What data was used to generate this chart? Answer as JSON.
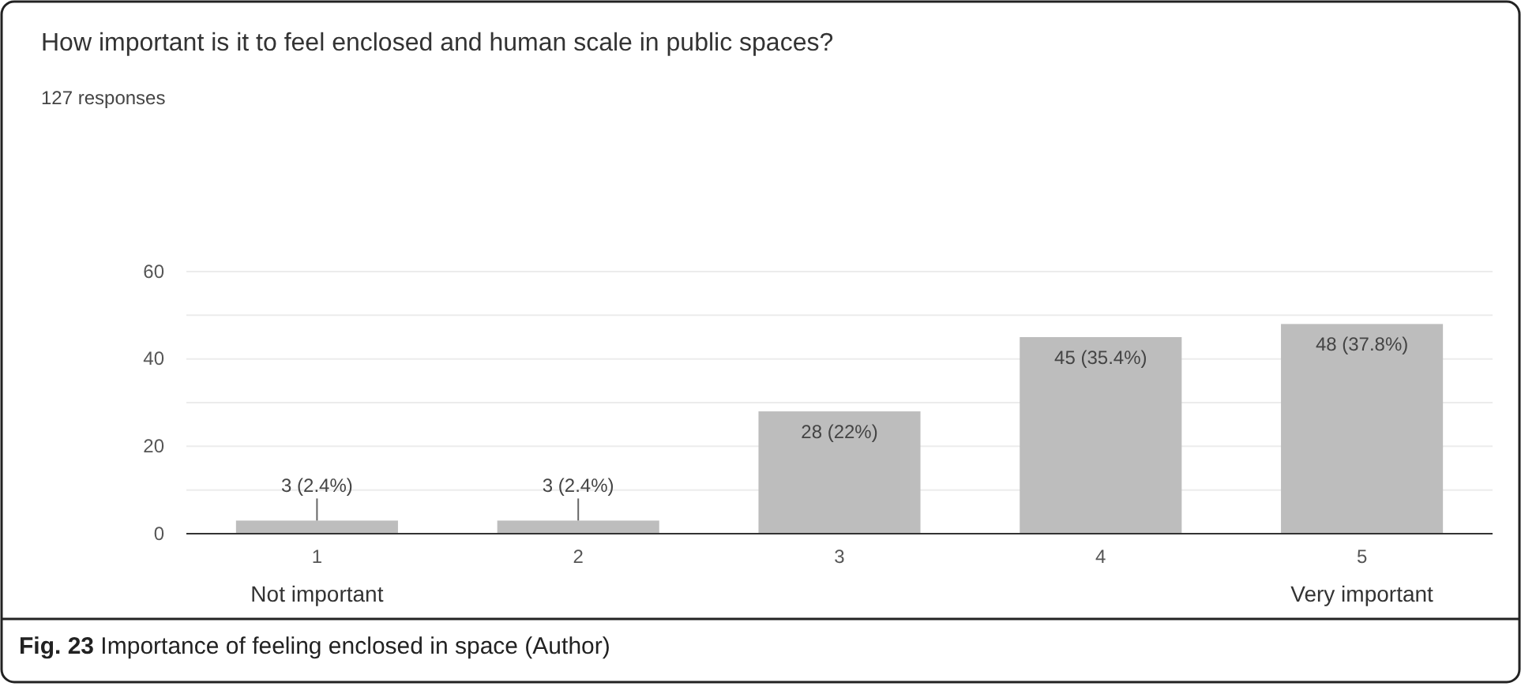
{
  "chart_data": {
    "type": "bar",
    "title": "How important is it to feel enclosed and human scale in public spaces?",
    "subtitle": "127 responses",
    "categories": [
      "1",
      "2",
      "3",
      "4",
      "5"
    ],
    "values": [
      3,
      3,
      28,
      45,
      48
    ],
    "color": "#bdbdbd",
    "value_labels": [
      "3 (2.4%)",
      "3 (2.4%)",
      "28 (22%)",
      "45 (35.4%)",
      "48 (37.8%)"
    ],
    "ylim": [
      0,
      60
    ],
    "yticks": [
      0,
      {
        "value": 10,
        "label": null
      },
      20,
      {
        "value": 30,
        "label": null
      },
      40,
      {
        "value": 50,
        "label": null
      },
      60
    ],
    "grid": "y",
    "annotations": [
      "Not important",
      "Very important",
      "Fig. 23 Importance of feeling enclosed in space (Author)"
    ]
  }
}
